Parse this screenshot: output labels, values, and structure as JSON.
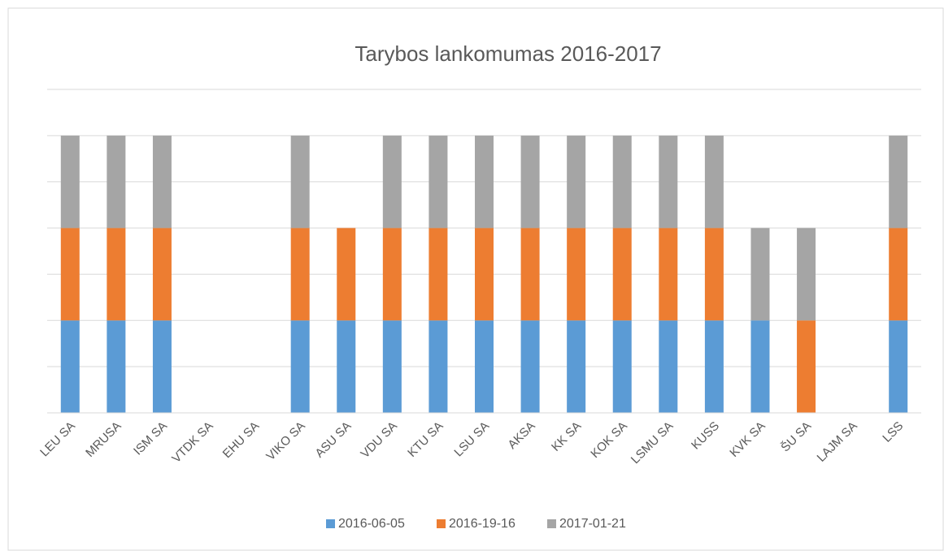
{
  "chart_data": {
    "type": "stacked_bar",
    "title": "Tarybos lankomumas 2016-2017",
    "categories": [
      "LEU SA",
      "MRUSA",
      "ISM SA",
      "VTDK SA",
      "EHU SA",
      "VIKO SA",
      "ASU SA",
      "VDU SA",
      "KTU SA",
      "LSU SA",
      "AKSA",
      "KK SA",
      "KOK SA",
      "LSMU SA",
      "KUSS",
      "KVK SA",
      "ŠU SA",
      "LAJM SA",
      "LSS"
    ],
    "series": [
      {
        "name": "2016-06-05",
        "color": "#5b9bd5",
        "values": [
          1,
          1,
          1,
          0,
          0,
          1,
          1,
          1,
          1,
          1,
          1,
          1,
          1,
          1,
          1,
          1,
          0,
          0,
          1
        ]
      },
      {
        "name": "2016-19-16",
        "color": "#ed7d31",
        "values": [
          1,
          1,
          1,
          0,
          0,
          1,
          1,
          1,
          1,
          1,
          1,
          1,
          1,
          1,
          1,
          0,
          1,
          0,
          1
        ]
      },
      {
        "name": "2017-01-21",
        "color": "#a5a5a5",
        "values": [
          1,
          1,
          1,
          0,
          0,
          1,
          0,
          1,
          1,
          1,
          1,
          1,
          1,
          1,
          1,
          1,
          1,
          0,
          1
        ]
      }
    ],
    "ylim": [
      0,
      3.5
    ],
    "yticks": [
      0,
      0.5,
      1,
      1.5,
      2,
      2.5,
      3,
      3.5
    ],
    "grid": true,
    "legend": "bottom"
  }
}
